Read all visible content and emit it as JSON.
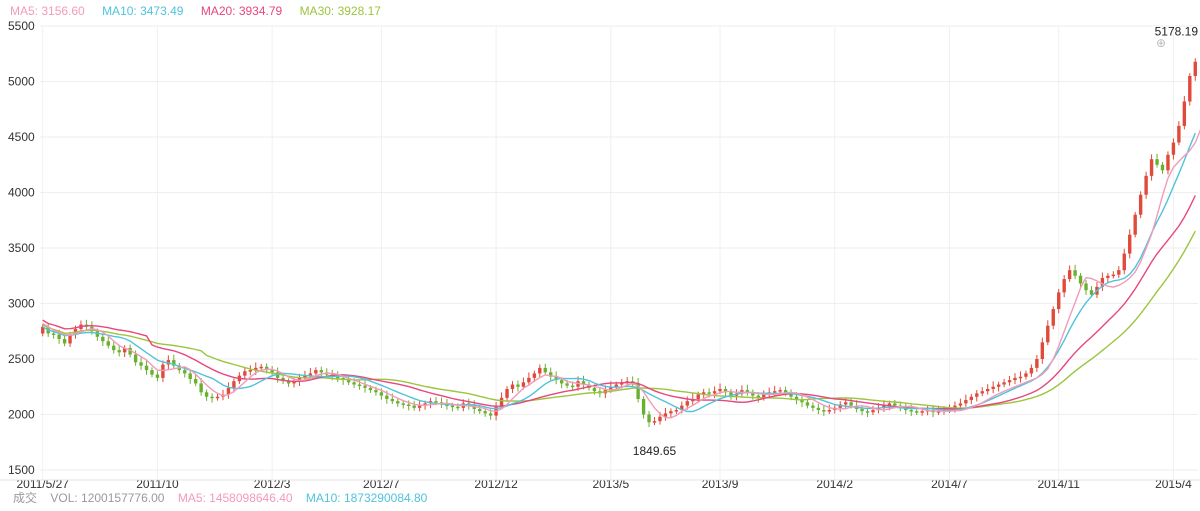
{
  "legend": {
    "ma5": {
      "label": "MA5: 3156.60",
      "color": "#f29bb8"
    },
    "ma10": {
      "label": "MA10: 3473.49",
      "color": "#4fc3dc"
    },
    "ma20": {
      "label": "MA20: 3934.79",
      "color": "#e8467c"
    },
    "ma30": {
      "label": "MA30: 3928.17",
      "color": "#9bc53d"
    }
  },
  "volume_legend": {
    "cn_label": "成交",
    "vol_label": "VOL: 1200157776.00",
    "ma5_label": "MA5: 1458098646.40",
    "ma10_label": "MA10: 1873290084.80",
    "ma5_color": "#f29bb8",
    "ma10_color": "#4fc3dc"
  },
  "watermark_icon": "logo-icon",
  "chart_data": {
    "type": "candlestick",
    "title": "",
    "ylim": [
      1500,
      5500
    ],
    "yticks": [
      1500,
      2000,
      2500,
      3000,
      3500,
      4000,
      4500,
      5000,
      5500
    ],
    "grid": true,
    "xticks": [
      {
        "label": "2011/5/27",
        "index": 0
      },
      {
        "label": "2011/10",
        "index": 21
      },
      {
        "label": "2012/3",
        "index": 42
      },
      {
        "label": "2012/7",
        "index": 62
      },
      {
        "label": "2012/12",
        "index": 83
      },
      {
        "label": "2013/5",
        "index": 104
      },
      {
        "label": "2013/9",
        "index": 124
      },
      {
        "label": "2014/2",
        "index": 145
      },
      {
        "label": "2014/7",
        "index": 166
      },
      {
        "label": "2014/11",
        "index": 186
      },
      {
        "label": "2015/4",
        "index": 207
      }
    ],
    "up_color": "#e04a3a",
    "down_color": "#6ab02f",
    "annotations": [
      {
        "text": "5178.19",
        "index": 214,
        "value": 5178.19,
        "position": "above"
      },
      {
        "text": "1849.65",
        "index": 112,
        "value": 1849.65,
        "position": "below"
      }
    ],
    "close": [
      2790,
      2730,
      2720,
      2680,
      2640,
      2720,
      2770,
      2810,
      2790,
      2750,
      2700,
      2660,
      2620,
      2580,
      2560,
      2600,
      2540,
      2470,
      2440,
      2400,
      2360,
      2330,
      2450,
      2490,
      2440,
      2400,
      2370,
      2320,
      2280,
      2200,
      2160,
      2150,
      2160,
      2180,
      2240,
      2300,
      2350,
      2390,
      2400,
      2420,
      2430,
      2400,
      2380,
      2330,
      2300,
      2280,
      2300,
      2330,
      2350,
      2370,
      2400,
      2380,
      2360,
      2340,
      2330,
      2310,
      2290,
      2270,
      2260,
      2240,
      2220,
      2200,
      2170,
      2140,
      2120,
      2100,
      2090,
      2080,
      2060,
      2080,
      2100,
      2120,
      2110,
      2090,
      2080,
      2070,
      2060,
      2100,
      2080,
      2050,
      2030,
      2010,
      1990,
      2070,
      2150,
      2230,
      2270,
      2250,
      2290,
      2330,
      2370,
      2420,
      2380,
      2340,
      2310,
      2280,
      2260,
      2250,
      2300,
      2270,
      2240,
      2210,
      2190,
      2220,
      2250,
      2270,
      2290,
      2300,
      2280,
      2140,
      2000,
      1930,
      1940,
      1980,
      2010,
      2030,
      2040,
      2080,
      2120,
      2140,
      2180,
      2200,
      2190,
      2210,
      2230,
      2200,
      2170,
      2190,
      2220,
      2200,
      2170,
      2150,
      2180,
      2200,
      2210,
      2220,
      2190,
      2160,
      2130,
      2110,
      2080,
      2060,
      2040,
      2030,
      2040,
      2060,
      2090,
      2110,
      2080,
      2050,
      2030,
      2020,
      2040,
      2060,
      2080,
      2100,
      2080,
      2060,
      2040,
      2030,
      2020,
      2030,
      2040,
      2020,
      2030,
      2050,
      2060,
      2080,
      2100,
      2130,
      2160,
      2190,
      2210,
      2230,
      2250,
      2270,
      2290,
      2310,
      2330,
      2340,
      2370,
      2420,
      2500,
      2650,
      2800,
      2950,
      3100,
      3220,
      3300,
      3250,
      3180,
      3120,
      3080,
      3150,
      3230,
      3250,
      3260,
      3300,
      3450,
      3620,
      3800,
      3980,
      4150,
      4300,
      4250,
      4200,
      4340,
      4450,
      4600,
      4820,
      5050,
      5178
    ],
    "ma5": [
      2820,
      2790,
      2760,
      2740,
      2720,
      2716,
      2728,
      2744,
      2760,
      2772,
      2764,
      2742,
      2706,
      2662,
      2620,
      2596,
      2580,
      2550,
      2522,
      2490,
      2442,
      2400,
      2396,
      2404,
      2412,
      2422,
      2430,
      2404,
      2362,
      2314,
      2266,
      2222,
      2190,
      2170,
      2178,
      2206,
      2250,
      2292,
      2338,
      2376,
      2398,
      2408,
      2406,
      2392,
      2368,
      2338,
      2318,
      2308,
      2312,
      2326,
      2350,
      2366,
      2372,
      2370,
      2362,
      2344,
      2326,
      2310,
      2292,
      2272,
      2254,
      2236,
      2218,
      2194,
      2170,
      2146,
      2124,
      2108,
      2092,
      2084,
      2084,
      2088,
      2094,
      2100,
      2100,
      2094,
      2082,
      2082,
      2078,
      2072,
      2064,
      2054,
      2032,
      2030,
      2050,
      2090,
      2142,
      2188,
      2238,
      2264,
      2302,
      2332,
      2358,
      2348,
      2344,
      2326,
      2298,
      2288,
      2280,
      2272,
      2266,
      2252,
      2242,
      2226,
      2222,
      2226,
      2244,
      2266,
      2278,
      2258,
      2204,
      2130,
      2060,
      2008,
      1972,
      1970,
      1992,
      2028,
      2056,
      2082,
      2112,
      2144,
      2166,
      2178,
      2196,
      2206,
      2206,
      2200,
      2200,
      2198,
      2196,
      2190,
      2182,
      2182,
      2182,
      2186,
      2196,
      2200,
      2192,
      2176,
      2156,
      2134,
      2108,
      2084,
      2062,
      2050,
      2050,
      2054,
      2066,
      2076,
      2078,
      2072,
      2056,
      2046,
      2042,
      2050,
      2062,
      2072,
      2072,
      2072,
      2064,
      2048,
      2036,
      2030,
      2032,
      2030,
      2030,
      2034,
      2036,
      2048,
      2064,
      2084,
      2106,
      2134,
      2162,
      2186,
      2208,
      2230,
      2250,
      2270,
      2290,
      2310,
      2330,
      2362,
      2412,
      2500,
      2614,
      2748,
      2880,
      3006,
      3142,
      3232,
      3224,
      3204,
      3178,
      3156,
      3148,
      3164,
      3192,
      3230,
      3284,
      3376,
      3496,
      3624,
      3790,
      3970,
      4130,
      4226,
      4280,
      4330,
      4378,
      4450,
      4570,
      4750,
      4760
    ]
  }
}
